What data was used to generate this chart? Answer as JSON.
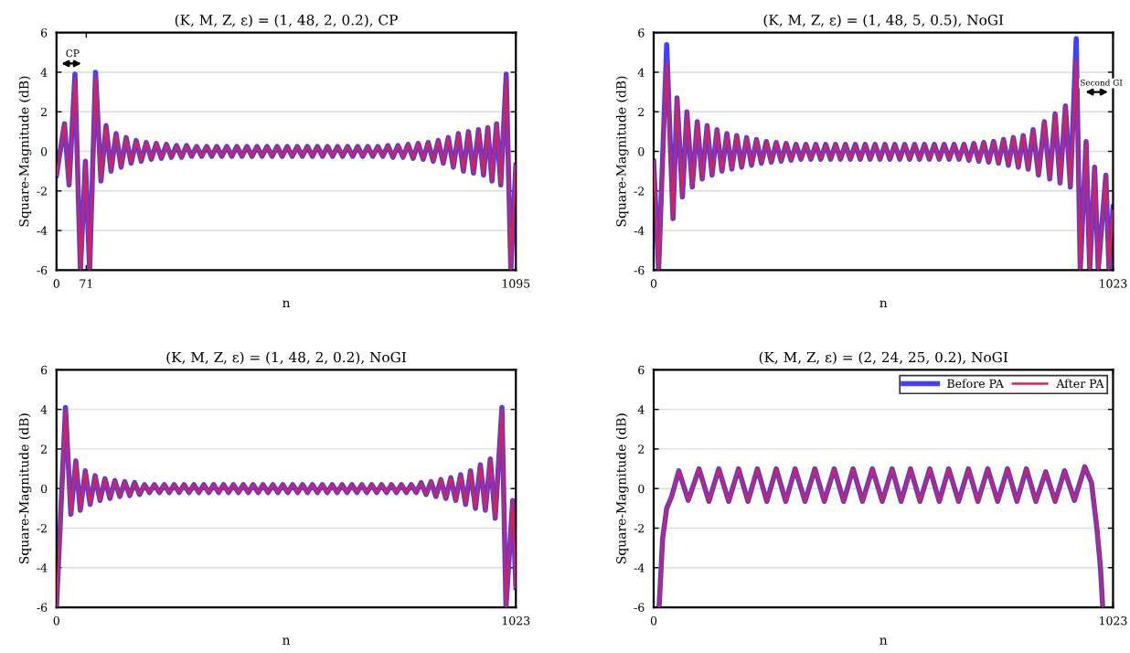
{
  "chart_data": [
    {
      "type": "line",
      "title": "(K, M, Z, ε) = (1, 48, 2, 0.2), CP",
      "xlabel": "n",
      "ylabel": "Square-Magnitude (dB)",
      "xlim": [
        0,
        1095
      ],
      "xticks": [
        0,
        71,
        1095
      ],
      "ylim": [
        -6,
        6
      ],
      "yticks": [
        -6,
        -4,
        -2,
        0,
        2,
        4,
        6
      ],
      "grid": "y",
      "annotations": [
        "CP"
      ],
      "x": [
        0,
        19,
        30,
        44,
        57,
        69,
        79,
        93,
        106,
        118,
        130,
        142,
        154,
        166,
        178,
        190,
        202,
        214,
        226,
        238,
        250,
        262,
        274,
        286,
        298,
        310,
        322,
        334,
        346,
        358,
        370,
        382,
        394,
        406,
        418,
        430,
        442,
        454,
        466,
        478,
        490,
        502,
        514,
        526,
        538,
        550,
        562,
        574,
        586,
        598,
        610,
        622,
        634,
        646,
        658,
        670,
        682,
        694,
        706,
        718,
        730,
        742,
        754,
        766,
        778,
        790,
        802,
        814,
        826,
        838,
        850,
        862,
        874,
        886,
        898,
        910,
        922,
        934,
        946,
        958,
        970,
        982,
        994,
        1006,
        1018,
        1028,
        1038,
        1049,
        1059,
        1072,
        1083,
        1095
      ],
      "series": [
        {
          "color": "#4040ff",
          "values": [
            -1.2,
            1.4,
            -1.7,
            3.9,
            -6,
            -0.5,
            -6,
            4.0,
            -1.5,
            1.3,
            -1.0,
            0.9,
            -0.8,
            0.7,
            -0.6,
            0.55,
            -0.5,
            0.45,
            -0.4,
            0.4,
            -0.35,
            0.35,
            -0.3,
            0.3,
            -0.3,
            0.3,
            -0.25,
            0.25,
            -0.25,
            0.25,
            -0.25,
            0.25,
            -0.25,
            0.25,
            -0.25,
            0.25,
            -0.25,
            0.25,
            -0.25,
            0.25,
            -0.25,
            0.25,
            -0.25,
            0.25,
            -0.25,
            0.25,
            -0.25,
            0.25,
            -0.25,
            0.25,
            -0.25,
            0.25,
            -0.25,
            0.25,
            -0.25,
            0.25,
            -0.25,
            0.25,
            -0.25,
            0.25,
            -0.25,
            0.25,
            -0.25,
            0.25,
            -0.25,
            0.3,
            -0.3,
            0.3,
            -0.3,
            0.35,
            -0.35,
            0.4,
            -0.4,
            0.45,
            -0.5,
            0.55,
            -0.6,
            0.7,
            -0.8,
            0.9,
            -1.0,
            1.0,
            -1.1,
            1.1,
            -1.2,
            1.2,
            -1.5,
            1.4,
            -1.7,
            3.9,
            -6,
            -0.7
          ]
        },
        {
          "color": "#e0204a",
          "values": [
            -1.2,
            1.4,
            -1.7,
            3.7,
            -6,
            -0.5,
            -6,
            3.8,
            -1.5,
            1.3,
            -1.0,
            0.9,
            -0.8,
            0.7,
            -0.6,
            0.55,
            -0.5,
            0.45,
            -0.4,
            0.4,
            -0.35,
            0.35,
            -0.3,
            0.3,
            -0.3,
            0.3,
            -0.25,
            0.25,
            -0.25,
            0.25,
            -0.25,
            0.25,
            -0.25,
            0.25,
            -0.25,
            0.25,
            -0.25,
            0.25,
            -0.25,
            0.25,
            -0.25,
            0.25,
            -0.25,
            0.25,
            -0.25,
            0.25,
            -0.25,
            0.25,
            -0.25,
            0.25,
            -0.25,
            0.25,
            -0.25,
            0.25,
            -0.25,
            0.25,
            -0.25,
            0.25,
            -0.25,
            0.25,
            -0.25,
            0.25,
            -0.25,
            0.25,
            -0.25,
            0.3,
            -0.3,
            0.3,
            -0.3,
            0.35,
            -0.35,
            0.4,
            -0.4,
            0.45,
            -0.5,
            0.55,
            -0.6,
            0.7,
            -0.8,
            0.9,
            -1.0,
            1.0,
            -1.1,
            1.1,
            -1.2,
            1.2,
            -1.5,
            1.4,
            -1.7,
            3.8,
            -6,
            -0.7
          ]
        }
      ]
    },
    {
      "type": "line",
      "title": "(K, M, Z, ε) = (1, 48, 5, 0.5), NoGI",
      "xlabel": "n",
      "ylabel": "Square-Magnitude (dB)",
      "xlim": [
        0,
        1023
      ],
      "xticks": [
        0,
        1023
      ],
      "ylim": [
        -6,
        6
      ],
      "yticks": [
        -6,
        -4,
        -2,
        0,
        2,
        4,
        6
      ],
      "grid": "y",
      "annotations": [
        "Second GI"
      ],
      "x": [
        0,
        11,
        29,
        43,
        52,
        64,
        74,
        86,
        97,
        108,
        119,
        130,
        141,
        152,
        163,
        174,
        185,
        196,
        207,
        218,
        229,
        240,
        251,
        262,
        273,
        284,
        295,
        306,
        317,
        328,
        339,
        350,
        361,
        372,
        383,
        394,
        405,
        416,
        427,
        438,
        449,
        460,
        471,
        482,
        493,
        504,
        515,
        526,
        537,
        548,
        559,
        570,
        581,
        592,
        603,
        614,
        625,
        636,
        647,
        658,
        669,
        680,
        691,
        702,
        713,
        724,
        735,
        746,
        757,
        768,
        779,
        790,
        801,
        812,
        823,
        834,
        845,
        857,
        870,
        882,
        894,
        905,
        917,
        928,
        941,
        950,
        963,
        971,
        982,
        990,
        1007,
        1014,
        1023
      ],
      "series": [
        {
          "color": "#4040ff",
          "values": [
            -0.5,
            -6,
            5.4,
            -3.4,
            2.7,
            -2.3,
            2.0,
            -1.8,
            1.5,
            -1.4,
            1.3,
            -1.2,
            1.1,
            -1.0,
            0.9,
            -0.9,
            0.8,
            -0.8,
            0.7,
            -0.7,
            0.6,
            -0.6,
            0.5,
            -0.55,
            0.45,
            -0.5,
            0.4,
            -0.45,
            0.35,
            -0.4,
            0.35,
            -0.4,
            0.35,
            -0.4,
            0.35,
            -0.4,
            0.35,
            -0.4,
            0.35,
            -0.4,
            0.35,
            -0.4,
            0.35,
            -0.4,
            0.35,
            -0.4,
            0.35,
            -0.4,
            0.35,
            -0.4,
            0.35,
            -0.4,
            0.35,
            -0.4,
            0.35,
            -0.4,
            0.35,
            -0.4,
            0.35,
            -0.4,
            0.35,
            -0.4,
            0.35,
            -0.45,
            0.4,
            -0.5,
            0.45,
            -0.55,
            0.5,
            -0.6,
            0.6,
            -0.7,
            0.7,
            -0.8,
            0.8,
            -0.9,
            1.1,
            -1.2,
            1.5,
            -1.4,
            1.9,
            -1.6,
            2.3,
            -1.8,
            5.7,
            -6,
            0.5,
            -6,
            -0.8,
            -6,
            -1.2,
            -6,
            -2.8
          ]
        },
        {
          "color": "#e0204a",
          "values": [
            -0.5,
            -6,
            4.5,
            -3.4,
            2.7,
            -2.3,
            2.0,
            -1.8,
            1.5,
            -1.4,
            1.3,
            -1.2,
            1.1,
            -1.0,
            0.9,
            -0.9,
            0.8,
            -0.8,
            0.7,
            -0.7,
            0.6,
            -0.6,
            0.5,
            -0.55,
            0.45,
            -0.5,
            0.4,
            -0.45,
            0.35,
            -0.4,
            0.35,
            -0.4,
            0.35,
            -0.4,
            0.35,
            -0.4,
            0.35,
            -0.4,
            0.35,
            -0.4,
            0.35,
            -0.4,
            0.35,
            -0.4,
            0.35,
            -0.4,
            0.35,
            -0.4,
            0.35,
            -0.4,
            0.35,
            -0.4,
            0.35,
            -0.4,
            0.35,
            -0.4,
            0.35,
            -0.4,
            0.35,
            -0.4,
            0.35,
            -0.4,
            0.35,
            -0.45,
            0.4,
            -0.5,
            0.45,
            -0.55,
            0.5,
            -0.6,
            0.6,
            -0.7,
            0.7,
            -0.8,
            0.8,
            -0.9,
            1.1,
            -1.2,
            1.5,
            -1.4,
            1.9,
            -1.6,
            2.3,
            -1.8,
            4.6,
            -6,
            0.5,
            -6,
            -0.8,
            -6,
            -1.2,
            -6,
            -3
          ]
        }
      ]
    },
    {
      "type": "line",
      "title": "(K, M, Z, ε) = (1, 48, 2, 0.2), NoGI",
      "xlabel": "n",
      "ylabel": "Square-Magnitude (dB)",
      "xlim": [
        0,
        1023
      ],
      "xticks": [
        0,
        1023
      ],
      "ylim": [
        -6,
        6
      ],
      "yticks": [
        -6,
        -4,
        -2,
        0,
        2,
        4,
        6
      ],
      "grid": "y",
      "x": [
        0,
        20,
        32,
        43,
        53,
        64,
        75,
        86,
        97,
        108,
        119,
        130,
        141,
        152,
        163,
        174,
        185,
        196,
        207,
        218,
        229,
        240,
        251,
        262,
        273,
        284,
        295,
        306,
        317,
        328,
        339,
        350,
        361,
        372,
        383,
        394,
        405,
        416,
        427,
        438,
        449,
        460,
        471,
        482,
        493,
        504,
        515,
        526,
        537,
        548,
        559,
        570,
        581,
        592,
        603,
        614,
        625,
        636,
        647,
        658,
        669,
        680,
        691,
        702,
        713,
        724,
        735,
        746,
        757,
        768,
        779,
        790,
        801,
        812,
        823,
        834,
        845,
        856,
        867,
        878,
        889,
        900,
        911,
        922,
        933,
        944,
        955,
        966,
        977,
        992,
        1001,
        1016,
        1023
      ],
      "series": [
        {
          "color": "#4040ff",
          "values": [
            -6,
            4.1,
            -1.3,
            1.4,
            -1.1,
            0.9,
            -0.8,
            0.65,
            -0.6,
            0.5,
            -0.5,
            0.4,
            -0.4,
            0.35,
            -0.35,
            0.3,
            -0.3,
            0.2,
            -0.2,
            0.2,
            -0.2,
            0.2,
            -0.2,
            0.2,
            -0.2,
            0.2,
            -0.2,
            0.2,
            -0.2,
            0.2,
            -0.2,
            0.2,
            -0.2,
            0.2,
            -0.2,
            0.2,
            -0.2,
            0.2,
            -0.2,
            0.2,
            -0.2,
            0.2,
            -0.2,
            0.2,
            -0.2,
            0.2,
            -0.2,
            0.2,
            -0.2,
            0.2,
            -0.2,
            0.2,
            -0.2,
            0.2,
            -0.2,
            0.2,
            -0.2,
            0.2,
            -0.2,
            0.2,
            -0.2,
            0.2,
            -0.2,
            0.2,
            -0.2,
            0.2,
            -0.2,
            0.2,
            -0.2,
            0.2,
            -0.2,
            0.2,
            -0.2,
            0.3,
            -0.3,
            0.35,
            -0.4,
            0.45,
            -0.5,
            0.55,
            -0.6,
            0.7,
            -0.8,
            0.9,
            -1.0,
            1.2,
            -1.1,
            1.5,
            -1.5,
            4.1,
            -6,
            -0.6,
            -5
          ]
        },
        {
          "color": "#e0204a",
          "values": [
            -6,
            4.0,
            -1.3,
            1.4,
            -1.1,
            0.9,
            -0.8,
            0.65,
            -0.6,
            0.5,
            -0.5,
            0.4,
            -0.4,
            0.35,
            -0.35,
            0.3,
            -0.3,
            0.2,
            -0.2,
            0.2,
            -0.2,
            0.2,
            -0.2,
            0.2,
            -0.2,
            0.2,
            -0.2,
            0.2,
            -0.2,
            0.2,
            -0.2,
            0.2,
            -0.2,
            0.2,
            -0.2,
            0.2,
            -0.2,
            0.2,
            -0.2,
            0.2,
            -0.2,
            0.2,
            -0.2,
            0.2,
            -0.2,
            0.2,
            -0.2,
            0.2,
            -0.2,
            0.2,
            -0.2,
            0.2,
            -0.2,
            0.2,
            -0.2,
            0.2,
            -0.2,
            0.2,
            -0.2,
            0.2,
            -0.2,
            0.2,
            -0.2,
            0.2,
            -0.2,
            0.2,
            -0.2,
            0.2,
            -0.2,
            0.2,
            -0.2,
            0.2,
            -0.2,
            0.3,
            -0.3,
            0.35,
            -0.4,
            0.45,
            -0.5,
            0.55,
            -0.6,
            0.7,
            -0.8,
            0.9,
            -1.0,
            1.2,
            -1.1,
            1.5,
            -1.5,
            4.0,
            -6,
            -0.6,
            -5
          ]
        }
      ]
    },
    {
      "type": "line",
      "title": "(K, M, Z, ε) = (2, 24, 25, 0.2), NoGI",
      "xlabel": "n",
      "ylabel": "Square-Magnitude (dB)",
      "xlim": [
        0,
        1023
      ],
      "xticks": [
        0,
        1023
      ],
      "ylim": [
        -6,
        6
      ],
      "yticks": [
        -6,
        -4,
        -2,
        0,
        2,
        4,
        6
      ],
      "grid": "y",
      "legend": "top right",
      "x": [
        12,
        20,
        29,
        40,
        56,
        77,
        101,
        123,
        145,
        167,
        189,
        210,
        231,
        252,
        273,
        294,
        315,
        337,
        359,
        380,
        402,
        423,
        444,
        465,
        487,
        509,
        531,
        551,
        572,
        593,
        615,
        636,
        657,
        679,
        701,
        722,
        744,
        766,
        788,
        809,
        830,
        851,
        873,
        894,
        915,
        937,
        960,
        975,
        987,
        995,
        1000
      ],
      "series": [
        {
          "name": "Before PA",
          "color": "#4040ff",
          "values": [
            -6,
            -2.5,
            -1.0,
            -0.4,
            0.9,
            -0.6,
            1.0,
            -0.65,
            1.0,
            -0.65,
            1.0,
            -0.65,
            1.0,
            -0.65,
            1.0,
            -0.65,
            1.0,
            -0.65,
            1.0,
            -0.65,
            1.0,
            -0.65,
            1.0,
            -0.65,
            1.0,
            -0.65,
            1.0,
            -0.65,
            1.0,
            -0.65,
            1.0,
            -0.65,
            1.0,
            -0.65,
            1.0,
            -0.65,
            1.0,
            -0.65,
            1.0,
            -0.65,
            1.0,
            -0.65,
            0.85,
            -0.65,
            0.9,
            -0.6,
            1.1,
            0.3,
            -2,
            -4,
            -6
          ]
        },
        {
          "name": "After PA",
          "color": "#e0204a",
          "values": [
            -6,
            -2.5,
            -1.0,
            -0.4,
            0.9,
            -0.6,
            1.0,
            -0.65,
            1.0,
            -0.65,
            1.0,
            -0.65,
            1.0,
            -0.65,
            1.0,
            -0.65,
            1.0,
            -0.65,
            1.0,
            -0.65,
            1.0,
            -0.65,
            1.0,
            -0.65,
            1.0,
            -0.65,
            1.0,
            -0.65,
            1.0,
            -0.65,
            1.0,
            -0.65,
            1.0,
            -0.65,
            1.0,
            -0.65,
            1.0,
            -0.65,
            1.0,
            -0.65,
            1.0,
            -0.65,
            0.85,
            -0.65,
            0.9,
            -0.6,
            1.1,
            0.3,
            -2,
            -4,
            -6
          ]
        }
      ]
    }
  ]
}
